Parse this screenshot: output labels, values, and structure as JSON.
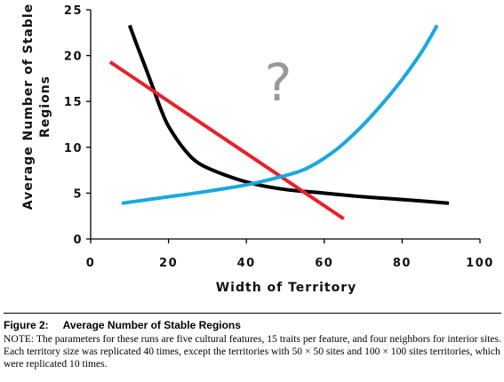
{
  "chart_data": {
    "type": "line",
    "xlabel": "Width of Territory",
    "ylabel": "Average Number of Stable Regions",
    "ylabel_lines": [
      "Average Number of Stable",
      "Regions"
    ],
    "xlim": [
      0,
      100
    ],
    "ylim": [
      0,
      25
    ],
    "xticks": [
      0,
      20,
      40,
      60,
      80,
      100
    ],
    "yticks": [
      0,
      5,
      10,
      15,
      20,
      25
    ],
    "grid": false,
    "annotation": "?",
    "series": [
      {
        "color": "#000000",
        "x": [
          10,
          12,
          14,
          16,
          18,
          20,
          24,
          28,
          35,
          42,
          50,
          60,
          70,
          80,
          92
        ],
        "y": [
          23.3,
          21.0,
          18.8,
          16.5,
          14.2,
          12.3,
          9.8,
          8.2,
          6.9,
          6.0,
          5.4,
          5.0,
          4.6,
          4.3,
          3.9
        ]
      },
      {
        "color": "#e8202a",
        "x": [
          5,
          65
        ],
        "y": [
          19.3,
          2.2
        ]
      },
      {
        "color": "#1aa8df",
        "x": [
          8,
          20,
          30,
          40,
          48,
          55,
          62,
          68,
          74,
          80,
          85,
          89
        ],
        "y": [
          3.9,
          4.6,
          5.2,
          5.9,
          6.7,
          7.6,
          9.4,
          11.6,
          14.3,
          17.4,
          20.4,
          23.3
        ]
      }
    ]
  },
  "caption": {
    "number": "Figure 2:",
    "title": "Average Number of Stable Regions",
    "note": "NOTE: The parameters for these runs are five cultural features, 15 traits per feature, and four neighbors for interior sites. Each territory size was replicated 40 times, except the territories with 50 × 50 sites and 100 × 100 sites territories, which were replicated 10 times."
  }
}
